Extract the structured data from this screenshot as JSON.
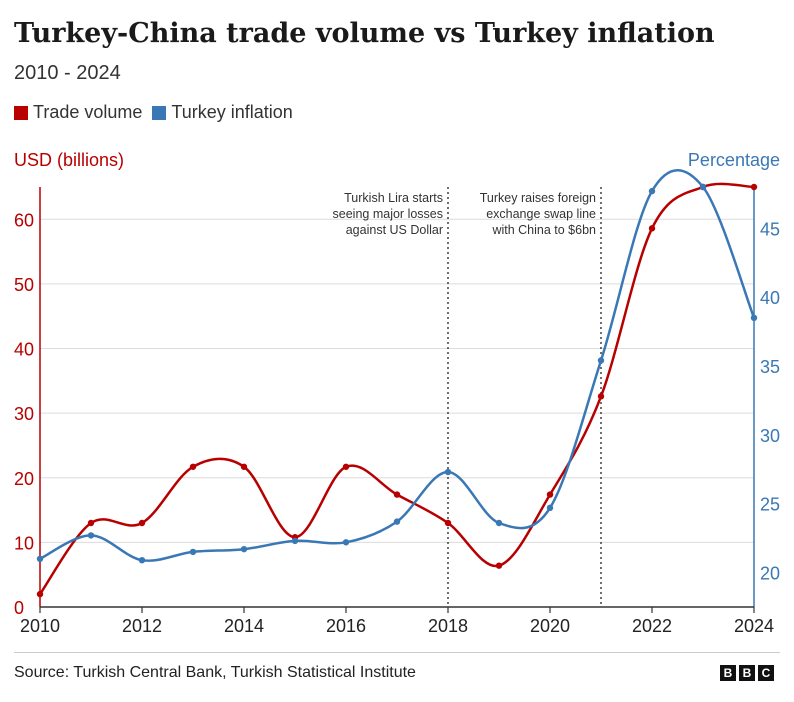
{
  "title": "Turkey-China trade volume vs Turkey inflation",
  "subtitle": "2010 - 2024",
  "legend": [
    {
      "label": "Trade volume",
      "color": "#b80000"
    },
    {
      "label": "Turkey inflation",
      "color": "#3a78b5"
    }
  ],
  "left_axis_title": "USD (billions)",
  "right_axis_title": "Percentage",
  "source": "Source: Turkish Central Bank, Turkish Statistical Institute",
  "logo": [
    "B",
    "B",
    "C"
  ],
  "chart_data": {
    "type": "line",
    "x": [
      2010,
      2011,
      2012,
      2013,
      2014,
      2015,
      2016,
      2017,
      2018,
      2019,
      2020,
      2021,
      2022,
      2023,
      2024
    ],
    "xlim": [
      2010,
      2024
    ],
    "x_ticks": [
      2010,
      2012,
      2014,
      2016,
      2018,
      2020,
      2022,
      2024
    ],
    "series": [
      {
        "name": "Trade volume",
        "axis": "left",
        "color": "#b80000",
        "values": [
          2,
          13,
          13,
          21.7,
          21.7,
          10.8,
          21.7,
          17.4,
          13,
          6.4,
          17.4,
          32.6,
          58.6,
          65,
          65
        ]
      },
      {
        "name": "Turkey inflation",
        "axis": "right",
        "color": "#3a78b5",
        "values": [
          21,
          22.7,
          20.9,
          21.5,
          21.7,
          22.3,
          22.2,
          23.7,
          27.3,
          23.6,
          24.7,
          35.4,
          47.7,
          48,
          38.5
        ]
      }
    ],
    "left_axis": {
      "label": "USD (billions)",
      "ylim": [
        0,
        65
      ],
      "ticks": [
        0,
        10,
        20,
        30,
        40,
        50,
        60
      ],
      "color": "#b80000"
    },
    "right_axis": {
      "label": "Percentage",
      "ylim": [
        17.5,
        48
      ],
      "ticks": [
        20,
        25,
        30,
        35,
        40,
        45
      ],
      "color": "#3a78b5"
    },
    "grid": true,
    "annotations": [
      {
        "x": 2018,
        "lines": [
          "Turkish Lira starts",
          "seeing major losses",
          "against US Dollar"
        ]
      },
      {
        "x": 2021,
        "lines": [
          "Turkey raises foreign",
          "exchange swap line",
          "with China to $6bn"
        ]
      }
    ]
  }
}
